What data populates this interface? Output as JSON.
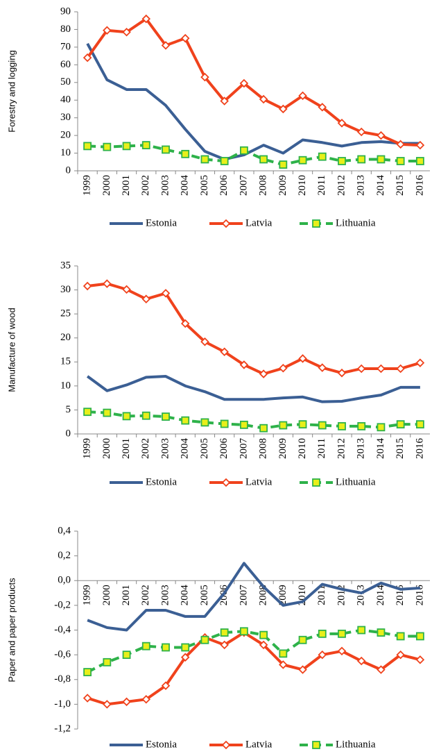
{
  "chart_data": [
    {
      "type": "line",
      "ylabel": "Forestry and logging",
      "categories": [
        "1999",
        "2000",
        "2001",
        "2002",
        "2003",
        "2004",
        "2005",
        "2006",
        "2007",
        "2008",
        "2009",
        "2010",
        "2011",
        "2012",
        "2013",
        "2014",
        "2015",
        "2016"
      ],
      "series": [
        {
          "name": "Estonia",
          "color": "#3b5f94",
          "values": [
            72,
            51.5,
            46,
            46,
            37,
            23.5,
            11,
            6.5,
            9,
            14.5,
            10,
            17.5,
            16,
            14,
            16,
            16.5,
            15.5,
            15.5
          ]
        },
        {
          "name": "Latvia",
          "color": "#f0421c",
          "values": [
            64,
            79.5,
            78.5,
            86,
            71,
            75,
            53,
            39.5,
            49.5,
            40.5,
            35,
            42.5,
            36,
            27,
            22,
            20,
            15,
            14.5
          ]
        },
        {
          "name": "Lithuania",
          "color": "#2eb24a",
          "values": [
            14,
            13.5,
            14,
            14.5,
            12,
            9.5,
            6.5,
            5.5,
            11.5,
            6.5,
            3.5,
            6,
            8,
            5.5,
            6.5,
            6.5,
            5.5,
            5.5
          ]
        }
      ],
      "ylim": [
        0,
        90
      ],
      "yticks": [
        0,
        10,
        20,
        30,
        40,
        50,
        60,
        70,
        80,
        90
      ],
      "legend": "bottom"
    },
    {
      "type": "line",
      "ylabel": "Manufacture of wood",
      "categories": [
        "1999",
        "2000",
        "2001",
        "2002",
        "2003",
        "2004",
        "2005",
        "2006",
        "2007",
        "2008",
        "2009",
        "2010",
        "2011",
        "2012",
        "2013",
        "2014",
        "2015",
        "2016"
      ],
      "series": [
        {
          "name": "Estonia",
          "color": "#3b5f94",
          "values": [
            12,
            9,
            10.2,
            11.8,
            12,
            10,
            8.8,
            7.2,
            7.2,
            7.2,
            7.5,
            7.7,
            6.7,
            6.8,
            7.5,
            8.1,
            9.7,
            9.7
          ]
        },
        {
          "name": "Latvia",
          "color": "#f0421c",
          "values": [
            30.8,
            31.3,
            30.1,
            28.1,
            29.3,
            23,
            19.2,
            17.1,
            14.4,
            12.5,
            13.7,
            15.7,
            13.8,
            12.7,
            13.6,
            13.6,
            13.6,
            14.8
          ]
        },
        {
          "name": "Lithuania",
          "color": "#2eb24a",
          "values": [
            4.6,
            4.4,
            3.7,
            3.8,
            3.6,
            2.8,
            2.4,
            2.1,
            1.9,
            1.2,
            1.8,
            2,
            1.8,
            1.6,
            1.6,
            1.4,
            2,
            2
          ]
        }
      ],
      "ylim": [
        0,
        35
      ],
      "yticks": [
        0,
        5,
        10,
        15,
        20,
        25,
        30,
        35
      ],
      "legend": "bottom"
    },
    {
      "type": "line",
      "ylabel": "Paper and paper products",
      "categories": [
        "1999",
        "2000",
        "2001",
        "2002",
        "2003",
        "2004",
        "2005",
        "2006",
        "2007",
        "2008",
        "2009",
        "2010",
        "2011",
        "2012",
        "2013",
        "2014",
        "2015",
        "2016"
      ],
      "series": [
        {
          "name": "Estonia",
          "color": "#3b5f94",
          "values": [
            -0.32,
            -0.38,
            -0.4,
            -0.24,
            -0.24,
            -0.29,
            -0.29,
            -0.1,
            0.14,
            -0.05,
            -0.2,
            -0.17,
            -0.03,
            -0.07,
            -0.1,
            -0.02,
            -0.07,
            -0.06
          ]
        },
        {
          "name": "Latvia",
          "color": "#f0421c",
          "values": [
            -0.95,
            -1.0,
            -0.98,
            -0.96,
            -0.85,
            -0.62,
            -0.46,
            -0.52,
            -0.42,
            -0.52,
            -0.68,
            -0.72,
            -0.6,
            -0.57,
            -0.65,
            -0.72,
            -0.6,
            -0.64
          ]
        },
        {
          "name": "Lithuania",
          "color": "#2eb24a",
          "values": [
            -0.74,
            -0.66,
            -0.6,
            -0.53,
            -0.54,
            -0.54,
            -0.48,
            -0.42,
            -0.41,
            -0.44,
            -0.59,
            -0.48,
            -0.43,
            -0.43,
            -0.4,
            -0.42,
            -0.45,
            -0.45
          ]
        }
      ],
      "ylim": [
        -1.2,
        0.4
      ],
      "yticks": [
        {
          "value": -1.2,
          "label": "-1,2"
        },
        {
          "value": -1.0,
          "label": "-1,0"
        },
        {
          "value": -0.8,
          "label": "-0,8"
        },
        {
          "value": -0.6,
          "label": "-0,6"
        },
        {
          "value": -0.4,
          "label": "-0,4"
        },
        {
          "value": -0.2,
          "label": "-0,2"
        },
        {
          "value": 0,
          "label": "0,0"
        },
        {
          "value": 0.2,
          "label": "0,2"
        },
        {
          "value": 0.4,
          "label": "0,4"
        }
      ],
      "legend": "bottom"
    }
  ]
}
